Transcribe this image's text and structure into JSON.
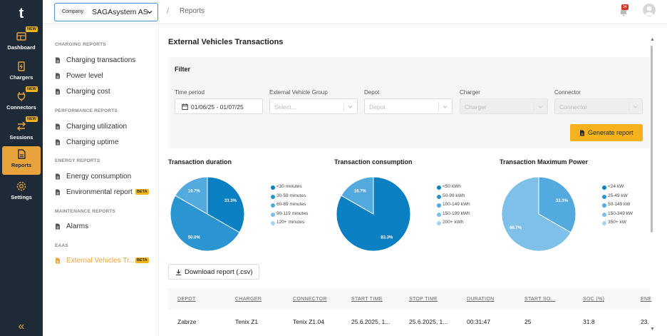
{
  "app": {
    "logo": "t",
    "nav": [
      {
        "label": "Dashboard",
        "badge": "NEW",
        "icon": "dashboard-icon"
      },
      {
        "label": "Chargers",
        "badge": "",
        "icon": "charger-icon"
      },
      {
        "label": "Connectors",
        "badge": "NEW",
        "icon": "plug-icon"
      },
      {
        "label": "Sessions",
        "badge": "NEW",
        "icon": "swap-icon"
      },
      {
        "label": "Reports",
        "badge": "",
        "icon": "report-icon",
        "active": true
      },
      {
        "label": "Settings",
        "badge": "",
        "icon": "gear-icon"
      }
    ],
    "collapse_icon": "double-chevron-left-icon"
  },
  "topbar": {
    "company_label": "Company",
    "company_value": "SAGAsystem AS",
    "breadcrumb_sep": "/",
    "breadcrumb": "Reports",
    "notification_count": "34"
  },
  "subnav": {
    "sections": [
      {
        "title": "CHARGING REPORTS",
        "items": [
          "Charging transactions",
          "Power level",
          "Charging cost"
        ]
      },
      {
        "title": "PERFORMANCE REPORTS",
        "items": [
          "Charging utilization",
          "Charging uptime"
        ]
      },
      {
        "title": "ENERGY REPORTS",
        "items": [
          "Energy consumption",
          "Environmental report"
        ]
      },
      {
        "title": "MAINTENANCE REPORTS",
        "items": [
          "Alarms"
        ]
      },
      {
        "title": "EAAS",
        "items": [
          "External Vehicles Tr..."
        ]
      }
    ],
    "beta_label": "BETA"
  },
  "main": {
    "title": "External Vehicles Transactions",
    "filter": {
      "title": "Filter",
      "fields": [
        {
          "label": "Time period",
          "value": "01/06/25 - 01/07/25"
        },
        {
          "label": "External Vehicle Group",
          "placeholder": "Select..."
        },
        {
          "label": "Depot",
          "placeholder": "Depot"
        },
        {
          "label": "Charger",
          "placeholder": "Charger"
        },
        {
          "label": "Connector",
          "placeholder": "Connector"
        }
      ],
      "generate_label": "Generate report"
    },
    "download_label": "Download report (.csv)",
    "table": {
      "headers": [
        "DEPOT",
        "CHARGER",
        "CONNECTOR",
        "START TIME",
        "STOP TIME",
        "DURATION",
        "START SO...",
        "SOC (%)",
        "ENE"
      ],
      "rows": [
        [
          "Zabrze",
          "Tenix Z1",
          "Tenix Z1.04",
          "25.6.2025, 1...",
          "25.6.2025, 1...",
          "00:31:47",
          "25",
          "31.8",
          "23."
        ]
      ]
    }
  },
  "colors": {
    "accent": "#f5b21d",
    "nav_bg": "#1e2a38",
    "pie_shades": [
      "#0a7fc2",
      "#2b95d1",
      "#53aade",
      "#7ec0e8",
      "#a7d4f0"
    ]
  },
  "chart_data": [
    {
      "type": "pie",
      "title": "Transaction duration",
      "labels": [
        "<30 minutes",
        "30-59 minutes",
        "60-89 minutes",
        "90-119 minutes",
        "120+ minutes"
      ],
      "values": [
        33.3,
        50.0,
        16.7,
        0,
        0
      ],
      "value_labels": [
        "33.3%",
        "50.0%",
        "16.7%",
        "",
        ""
      ],
      "legend": "right"
    },
    {
      "type": "pie",
      "title": "Transaction consumption",
      "labels": [
        "<50 kWh",
        "50-99 kWh",
        "100-149 kWh",
        "150-199 kWh",
        "200+ kWh"
      ],
      "values": [
        83.3,
        0,
        16.7,
        0,
        0
      ],
      "value_labels": [
        "83.3%",
        "",
        "16.7%",
        "",
        ""
      ],
      "legend": "right"
    },
    {
      "type": "pie",
      "title": "Transaction Maximum Power",
      "labels": [
        "<24 kW",
        "25-49 kW",
        "50-149 kW",
        "150-349 kW",
        "350+ kW"
      ],
      "values": [
        0,
        0,
        33.3,
        66.7,
        0
      ],
      "value_labels": [
        "",
        "",
        "33.3%",
        "66.7%",
        ""
      ],
      "legend": "right"
    }
  ]
}
